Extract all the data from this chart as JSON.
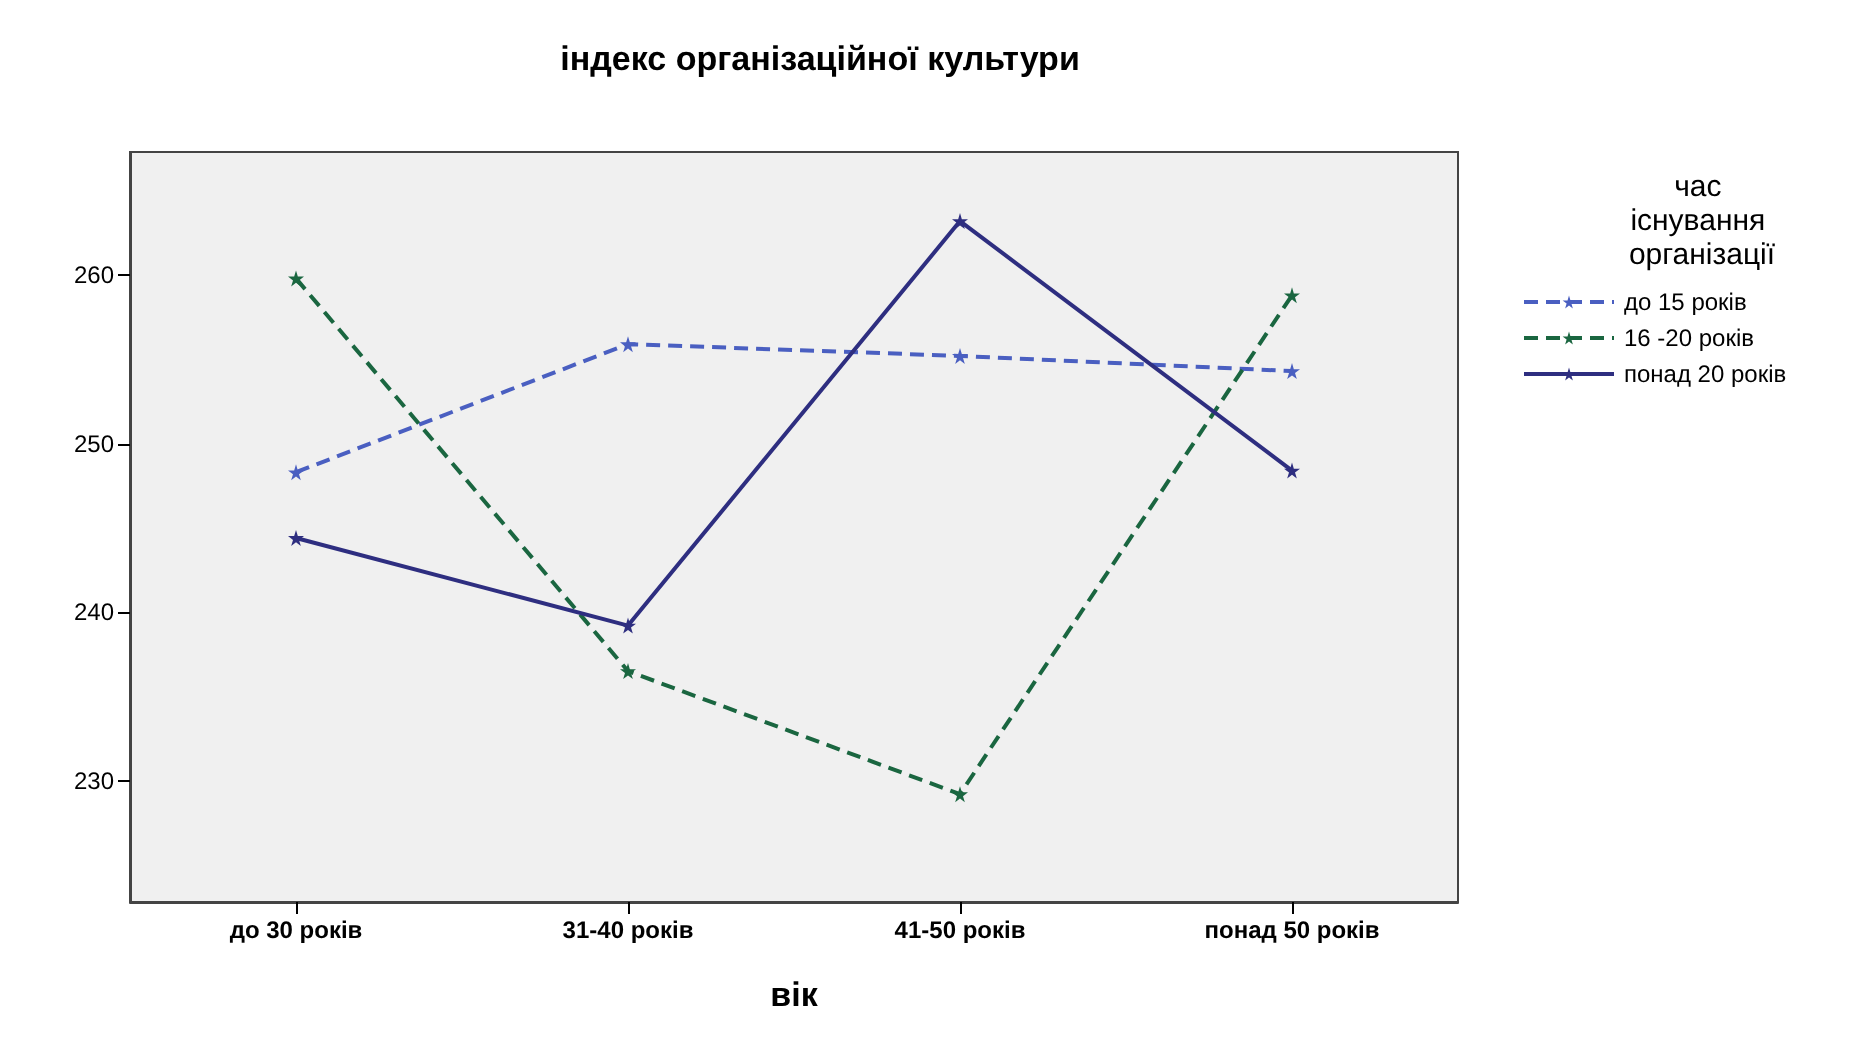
{
  "chart_data": {
    "type": "line",
    "title": "індекс організаційної культури",
    "xlabel": "вік",
    "legend_title": "час існування організації",
    "categories": [
      "до 30 років",
      "31-40 років",
      "41-50 років",
      "понад 50 років"
    ],
    "series": [
      {
        "name": "до 15 років",
        "color": "#4a5fc1",
        "line_style": "dashed",
        "values": [
          248.3,
          255.9,
          255.2,
          254.3
        ]
      },
      {
        "name": "16 -20 років",
        "color": "#1a6640",
        "line_style": "dashed",
        "values": [
          259.8,
          236.5,
          229.2,
          258.8
        ]
      },
      {
        "name": "понад 20 років",
        "color": "#2e2e80",
        "line_style": "solid",
        "values": [
          244.4,
          239.2,
          263.2,
          248.4
        ]
      }
    ],
    "ylim": [
      222.8,
      267.3
    ],
    "yticks": [
      230,
      240,
      250,
      260
    ],
    "grid": false,
    "legend": "right",
    "marker": "star"
  }
}
